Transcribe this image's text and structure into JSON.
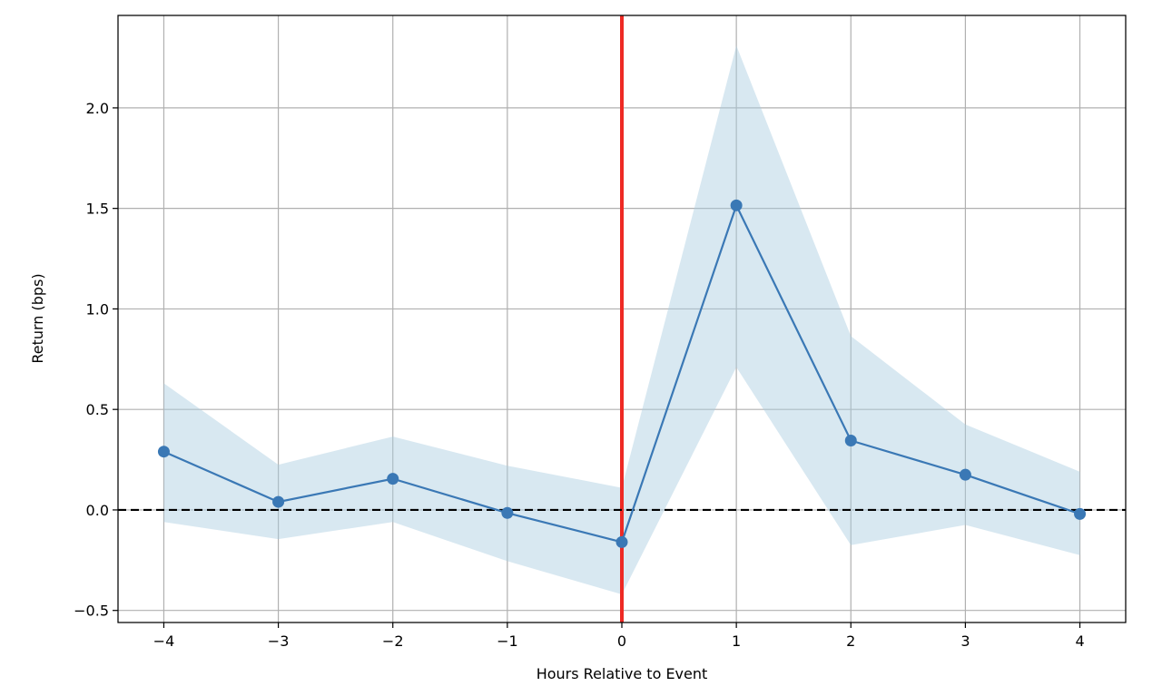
{
  "chart_data": {
    "type": "line",
    "title": "",
    "xlabel": "Hours Relative to Event",
    "ylabel": "Return (bps)",
    "xlim": [
      -4.4,
      4.4
    ],
    "ylim": [
      -0.56,
      2.46
    ],
    "xticks": [
      -4,
      -3,
      -2,
      -1,
      0,
      1,
      2,
      3,
      4
    ],
    "xtick_labels": [
      "−4",
      "−3",
      "−2",
      "−1",
      "0",
      "1",
      "2",
      "3",
      "4"
    ],
    "yticks": [
      -0.5,
      0.0,
      0.5,
      1.0,
      1.5,
      2.0
    ],
    "ytick_labels": [
      "−0.5",
      "0.0",
      "0.5",
      "1.0",
      "1.5",
      "2.0"
    ],
    "grid": true,
    "series": [
      {
        "x": [
          -4,
          -3,
          -2,
          -1,
          0,
          1,
          2,
          3,
          4
        ],
        "y": [
          0.29,
          0.04,
          0.155,
          -0.015,
          -0.16,
          1.515,
          0.345,
          0.175,
          -0.02
        ],
        "lower": [
          -0.06,
          -0.145,
          -0.06,
          -0.255,
          -0.42,
          0.71,
          -0.175,
          -0.075,
          -0.225
        ],
        "upper": [
          0.63,
          0.225,
          0.365,
          0.22,
          0.11,
          2.31,
          0.865,
          0.425,
          0.19
        ],
        "color": "#3a78b5",
        "band_color": "#a8cde0"
      }
    ],
    "reference_lines": [
      {
        "orientation": "vertical",
        "value": 0,
        "color": "#ee2a24",
        "style": "solid"
      },
      {
        "orientation": "horizontal",
        "value": 0,
        "color": "#000000",
        "style": "dashed"
      }
    ]
  }
}
